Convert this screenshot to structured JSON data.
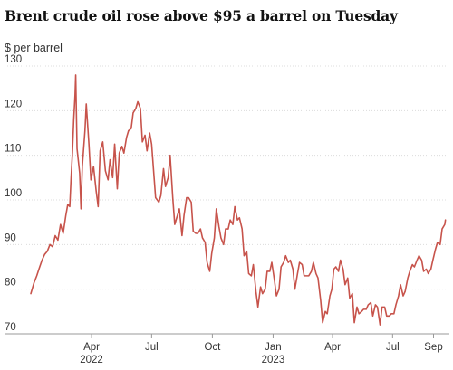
{
  "chart_data": {
    "type": "line",
    "title": "Brent crude oil rose above $95 a barrel on Tuesday",
    "ylabel": "$ per barrel",
    "xlabel": "",
    "ylim": [
      70,
      130
    ],
    "yticks": [
      70,
      80,
      90,
      100,
      110,
      120,
      130
    ],
    "grid": "horizontal",
    "line_color": "#c7534b",
    "xticks": [
      {
        "date": "2022-04-01",
        "label": "Apr",
        "year": "2022"
      },
      {
        "date": "2022-07-01",
        "label": "Jul",
        "year": ""
      },
      {
        "date": "2022-10-01",
        "label": "Oct",
        "year": ""
      },
      {
        "date": "2023-01-01",
        "label": "Jan",
        "year": "2023"
      },
      {
        "date": "2023-04-01",
        "label": "Apr",
        "year": ""
      },
      {
        "date": "2023-07-01",
        "label": "Jul",
        "year": ""
      },
      {
        "date": "2023-09-01",
        "label": "Sep",
        "year": ""
      }
    ],
    "series": [
      {
        "points": [
          [
            "2021-12-30",
            79.0
          ],
          [
            "2022-01-04",
            81.5
          ],
          [
            "2022-01-08",
            83.0
          ],
          [
            "2022-01-12",
            84.8
          ],
          [
            "2022-01-16",
            86.5
          ],
          [
            "2022-01-20",
            87.8
          ],
          [
            "2022-01-24",
            88.5
          ],
          [
            "2022-01-28",
            90.0
          ],
          [
            "2022-02-01",
            89.5
          ],
          [
            "2022-02-05",
            92.0
          ],
          [
            "2022-02-09",
            91.0
          ],
          [
            "2022-02-13",
            94.5
          ],
          [
            "2022-02-17",
            92.5
          ],
          [
            "2022-02-21",
            96.5
          ],
          [
            "2022-02-24",
            99.0
          ],
          [
            "2022-02-27",
            98.5
          ],
          [
            "2022-03-01",
            105.0
          ],
          [
            "2022-03-03",
            110.5
          ],
          [
            "2022-03-05",
            118.0
          ],
          [
            "2022-03-07",
            123.5
          ],
          [
            "2022-03-08",
            128.0
          ],
          [
            "2022-03-10",
            111.5
          ],
          [
            "2022-03-14",
            106.0
          ],
          [
            "2022-03-16",
            98.0
          ],
          [
            "2022-03-18",
            107.5
          ],
          [
            "2022-03-22",
            115.5
          ],
          [
            "2022-03-24",
            121.5
          ],
          [
            "2022-03-28",
            112.5
          ],
          [
            "2022-03-31",
            104.5
          ],
          [
            "2022-04-04",
            107.5
          ],
          [
            "2022-04-08",
            102.0
          ],
          [
            "2022-04-11",
            98.5
          ],
          [
            "2022-04-14",
            111.0
          ],
          [
            "2022-04-18",
            113.0
          ],
          [
            "2022-04-22",
            106.5
          ],
          [
            "2022-04-26",
            104.5
          ],
          [
            "2022-04-29",
            109.0
          ],
          [
            "2022-05-03",
            105.0
          ],
          [
            "2022-05-06",
            112.5
          ],
          [
            "2022-05-10",
            102.5
          ],
          [
            "2022-05-13",
            110.5
          ],
          [
            "2022-05-17",
            112.0
          ],
          [
            "2022-05-20",
            110.5
          ],
          [
            "2022-05-24",
            114.0
          ],
          [
            "2022-05-27",
            115.5
          ],
          [
            "2022-05-31",
            116.0
          ],
          [
            "2022-06-03",
            119.5
          ],
          [
            "2022-06-07",
            120.5
          ],
          [
            "2022-06-10",
            122.0
          ],
          [
            "2022-06-14",
            120.5
          ],
          [
            "2022-06-17",
            113.0
          ],
          [
            "2022-06-21",
            114.5
          ],
          [
            "2022-06-24",
            111.0
          ],
          [
            "2022-06-28",
            115.0
          ],
          [
            "2022-07-01",
            112.5
          ],
          [
            "2022-07-05",
            104.5
          ],
          [
            "2022-07-07",
            100.5
          ],
          [
            "2022-07-12",
            99.5
          ],
          [
            "2022-07-15",
            101.0
          ],
          [
            "2022-07-19",
            107.0
          ],
          [
            "2022-07-22",
            103.0
          ],
          [
            "2022-07-26",
            105.0
          ],
          [
            "2022-07-29",
            110.0
          ],
          [
            "2022-08-02",
            100.5
          ],
          [
            "2022-08-05",
            94.5
          ],
          [
            "2022-08-09",
            96.5
          ],
          [
            "2022-08-12",
            98.0
          ],
          [
            "2022-08-16",
            92.0
          ],
          [
            "2022-08-19",
            96.5
          ],
          [
            "2022-08-23",
            100.5
          ],
          [
            "2022-08-26",
            100.5
          ],
          [
            "2022-08-30",
            99.5
          ],
          [
            "2022-09-02",
            93.0
          ],
          [
            "2022-09-06",
            92.5
          ],
          [
            "2022-09-09",
            92.5
          ],
          [
            "2022-09-13",
            93.5
          ],
          [
            "2022-09-16",
            91.5
          ],
          [
            "2022-09-20",
            90.5
          ],
          [
            "2022-09-23",
            86.0
          ],
          [
            "2022-09-27",
            84.0
          ],
          [
            "2022-09-30",
            88.0
          ],
          [
            "2022-10-04",
            91.5
          ],
          [
            "2022-10-07",
            98.0
          ],
          [
            "2022-10-11",
            94.0
          ],
          [
            "2022-10-14",
            91.5
          ],
          [
            "2022-10-18",
            90.0
          ],
          [
            "2022-10-21",
            93.5
          ],
          [
            "2022-10-25",
            93.5
          ],
          [
            "2022-10-28",
            95.5
          ],
          [
            "2022-11-01",
            94.5
          ],
          [
            "2022-11-04",
            98.5
          ],
          [
            "2022-11-08",
            95.5
          ],
          [
            "2022-11-11",
            96.0
          ],
          [
            "2022-11-15",
            93.5
          ],
          [
            "2022-11-18",
            87.5
          ],
          [
            "2022-11-22",
            88.5
          ],
          [
            "2022-11-25",
            83.5
          ],
          [
            "2022-11-29",
            83.0
          ],
          [
            "2022-12-02",
            85.5
          ],
          [
            "2022-12-06",
            79.5
          ],
          [
            "2022-12-09",
            76.0
          ],
          [
            "2022-12-13",
            80.5
          ],
          [
            "2022-12-16",
            79.0
          ],
          [
            "2022-12-20",
            80.0
          ],
          [
            "2022-12-23",
            84.0
          ],
          [
            "2022-12-27",
            84.0
          ],
          [
            "2022-12-30",
            86.0
          ],
          [
            "2023-01-03",
            82.0
          ],
          [
            "2023-01-06",
            78.5
          ],
          [
            "2023-01-10",
            80.0
          ],
          [
            "2023-01-13",
            85.0
          ],
          [
            "2023-01-17",
            86.0
          ],
          [
            "2023-01-20",
            87.5
          ],
          [
            "2023-01-24",
            86.0
          ],
          [
            "2023-01-27",
            86.5
          ],
          [
            "2023-01-31",
            84.5
          ],
          [
            "2023-02-03",
            80.0
          ],
          [
            "2023-02-07",
            83.5
          ],
          [
            "2023-02-10",
            86.0
          ],
          [
            "2023-02-14",
            85.5
          ],
          [
            "2023-02-17",
            83.0
          ],
          [
            "2023-02-21",
            83.0
          ],
          [
            "2023-02-24",
            83.0
          ],
          [
            "2023-02-28",
            84.0
          ],
          [
            "2023-03-03",
            86.0
          ],
          [
            "2023-03-07",
            83.5
          ],
          [
            "2023-03-10",
            82.5
          ],
          [
            "2023-03-14",
            77.5
          ],
          [
            "2023-03-17",
            72.5
          ],
          [
            "2023-03-21",
            75.0
          ],
          [
            "2023-03-24",
            74.5
          ],
          [
            "2023-03-28",
            78.5
          ],
          [
            "2023-03-31",
            80.0
          ],
          [
            "2023-04-03",
            84.5
          ],
          [
            "2023-04-06",
            85.0
          ],
          [
            "2023-04-10",
            84.0
          ],
          [
            "2023-04-13",
            86.5
          ],
          [
            "2023-04-17",
            84.5
          ],
          [
            "2023-04-20",
            81.0
          ],
          [
            "2023-04-24",
            82.5
          ],
          [
            "2023-04-27",
            78.0
          ],
          [
            "2023-05-01",
            79.0
          ],
          [
            "2023-05-04",
            72.5
          ],
          [
            "2023-05-08",
            76.0
          ],
          [
            "2023-05-11",
            74.5
          ],
          [
            "2023-05-15",
            75.0
          ],
          [
            "2023-05-18",
            75.5
          ],
          [
            "2023-05-22",
            75.5
          ],
          [
            "2023-05-25",
            76.5
          ],
          [
            "2023-05-29",
            77.0
          ],
          [
            "2023-06-01",
            74.0
          ],
          [
            "2023-06-05",
            76.5
          ],
          [
            "2023-06-08",
            76.0
          ],
          [
            "2023-06-12",
            72.0
          ],
          [
            "2023-06-15",
            76.0
          ],
          [
            "2023-06-19",
            76.0
          ],
          [
            "2023-06-22",
            74.0
          ],
          [
            "2023-06-26",
            74.0
          ],
          [
            "2023-06-29",
            74.5
          ],
          [
            "2023-07-03",
            74.5
          ],
          [
            "2023-07-06",
            76.5
          ],
          [
            "2023-07-10",
            78.5
          ],
          [
            "2023-07-13",
            81.0
          ],
          [
            "2023-07-17",
            78.5
          ],
          [
            "2023-07-20",
            79.5
          ],
          [
            "2023-07-24",
            82.5
          ],
          [
            "2023-07-27",
            84.0
          ],
          [
            "2023-07-31",
            85.5
          ],
          [
            "2023-08-03",
            85.0
          ],
          [
            "2023-08-07",
            86.5
          ],
          [
            "2023-08-10",
            87.5
          ],
          [
            "2023-08-14",
            86.5
          ],
          [
            "2023-08-17",
            84.0
          ],
          [
            "2023-08-21",
            84.5
          ],
          [
            "2023-08-24",
            83.5
          ],
          [
            "2023-08-28",
            84.5
          ],
          [
            "2023-08-31",
            86.5
          ],
          [
            "2023-09-04",
            89.0
          ],
          [
            "2023-09-07",
            90.5
          ],
          [
            "2023-09-11",
            90.0
          ],
          [
            "2023-09-14",
            93.5
          ],
          [
            "2023-09-18",
            94.5
          ],
          [
            "2023-09-19",
            95.5
          ]
        ]
      }
    ]
  }
}
